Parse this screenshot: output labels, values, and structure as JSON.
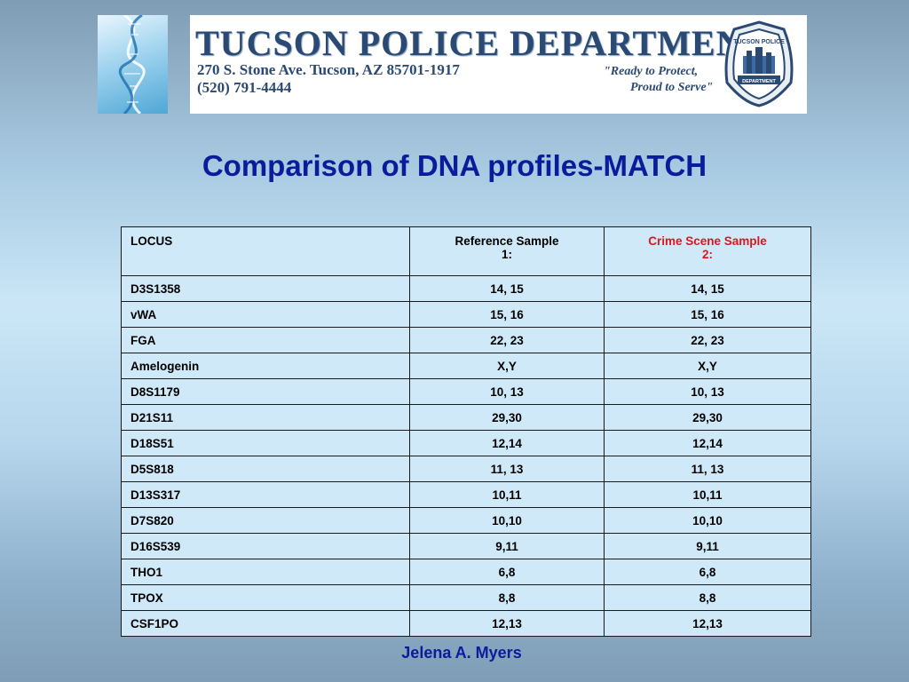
{
  "banner": {
    "title": "TUCSON POLICE DEPARTMENT",
    "address": "270 S. Stone Ave.   Tucson, AZ  85701-1917",
    "phone": "(520) 791-4444",
    "motto_line1": "\"Ready to Protect,",
    "motto_line2": "Proud to Serve\"",
    "badge_top": "TUCSON POLICE",
    "badge_bottom": "DEPARTMENT"
  },
  "slide_title": "Comparison of DNA profiles-MATCH",
  "table": {
    "headers": [
      "LOCUS",
      "Reference Sample 1:",
      "Crime Scene Sample 2:"
    ],
    "rows": [
      [
        "D3S1358",
        "14, 15",
        "14, 15"
      ],
      [
        "vWA",
        "15, 16",
        "15, 16"
      ],
      [
        "FGA",
        "22, 23",
        "22, 23"
      ],
      [
        "Amelogenin",
        "X,Y",
        "X,Y"
      ],
      [
        "D8S1179",
        "10, 13",
        "10, 13"
      ],
      [
        "D21S11",
        "29,30",
        "29,30"
      ],
      [
        "D18S51",
        "12,14",
        "12,14"
      ],
      [
        "D5S818",
        "11, 13",
        "11, 13"
      ],
      [
        "D13S317",
        "10,11",
        "10,11"
      ],
      [
        "D7S820",
        "10,10",
        "10,10"
      ],
      [
        "D16S539",
        "9,11",
        "9,11"
      ],
      [
        "THO1",
        "6,8",
        "6,8"
      ],
      [
        "TPOX",
        "8,8",
        "8,8"
      ],
      [
        "CSF1PO",
        "12,13",
        "12,13"
      ]
    ]
  },
  "author": "Jelena A. Myers",
  "colors": {
    "title": "#0a1c9c",
    "crime_header": "#e0141c",
    "cell_bg": "#cfe9f9"
  }
}
